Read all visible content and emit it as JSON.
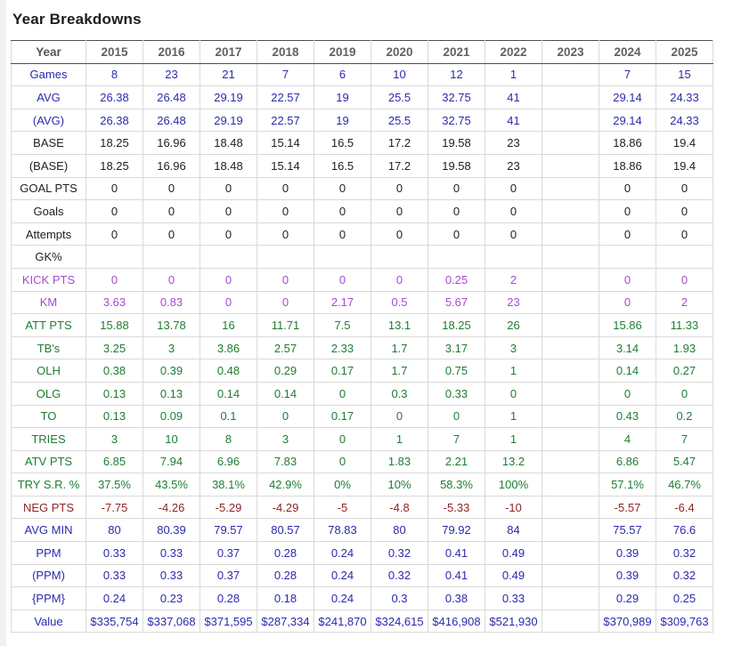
{
  "page": {
    "title": "Year Breakdowns"
  },
  "colors": {
    "blue": "#2a2aad",
    "black": "#202124",
    "purple": "#a44bd3",
    "green": "#1e7d32",
    "red": "#8e2424",
    "header_gray": "#616161"
  },
  "table": {
    "header": {
      "label": "Year",
      "years": [
        "2015",
        "2016",
        "2017",
        "2018",
        "2019",
        "2020",
        "2021",
        "2022",
        "2023",
        "2024",
        "2025"
      ]
    },
    "rows": [
      {
        "label": "Games",
        "color": "blue",
        "values": [
          "8",
          "23",
          "21",
          "7",
          "6",
          "10",
          "12",
          "1",
          "",
          "7",
          "15"
        ]
      },
      {
        "label": "AVG",
        "color": "blue",
        "values": [
          "26.38",
          "26.48",
          "29.19",
          "22.57",
          "19",
          "25.5",
          "32.75",
          "41",
          "",
          "29.14",
          "24.33"
        ]
      },
      {
        "label": "(AVG)",
        "color": "blue",
        "values": [
          "26.38",
          "26.48",
          "29.19",
          "22.57",
          "19",
          "25.5",
          "32.75",
          "41",
          "",
          "29.14",
          "24.33"
        ]
      },
      {
        "label": "BASE",
        "color": "black",
        "values": [
          "18.25",
          "16.96",
          "18.48",
          "15.14",
          "16.5",
          "17.2",
          "19.58",
          "23",
          "",
          "18.86",
          "19.4"
        ]
      },
      {
        "label": "(BASE)",
        "color": "black",
        "values": [
          "18.25",
          "16.96",
          "18.48",
          "15.14",
          "16.5",
          "17.2",
          "19.58",
          "23",
          "",
          "18.86",
          "19.4"
        ]
      },
      {
        "label": "GOAL PTS",
        "color": "black",
        "values": [
          "0",
          "0",
          "0",
          "0",
          "0",
          "0",
          "0",
          "0",
          "",
          "0",
          "0"
        ]
      },
      {
        "label": "Goals",
        "color": "black",
        "values": [
          "0",
          "0",
          "0",
          "0",
          "0",
          "0",
          "0",
          "0",
          "",
          "0",
          "0"
        ]
      },
      {
        "label": "Attempts",
        "color": "black",
        "values": [
          "0",
          "0",
          "0",
          "0",
          "0",
          "0",
          "0",
          "0",
          "",
          "0",
          "0"
        ]
      },
      {
        "label": "GK%",
        "color": "black",
        "values": [
          "",
          "",
          "",
          "",
          "",
          "",
          "",
          "",
          "",
          "",
          ""
        ]
      },
      {
        "label": "KICK PTS",
        "color": "purple",
        "values": [
          "0",
          "0",
          "0",
          "0",
          "0",
          "0",
          "0.25",
          "2",
          "",
          "0",
          "0"
        ]
      },
      {
        "label": "KM",
        "color": "purple",
        "values": [
          "3.63",
          "0.83",
          "0",
          "0",
          "2.17",
          "0.5",
          "5.67",
          "23",
          "",
          "0",
          "2"
        ]
      },
      {
        "label": "ATT PTS",
        "color": "green",
        "values": [
          "15.88",
          "13.78",
          "16",
          "11.71",
          "7.5",
          "13.1",
          "18.25",
          "26",
          "",
          "15.86",
          "11.33"
        ]
      },
      {
        "label": "TB's",
        "color": "green",
        "values": [
          "3.25",
          "3",
          "3.86",
          "2.57",
          "2.33",
          "1.7",
          "3.17",
          "3",
          "",
          "3.14",
          "1.93"
        ]
      },
      {
        "label": "OLH",
        "color": "green",
        "values": [
          "0.38",
          "0.39",
          "0.48",
          "0.29",
          "0.17",
          "1.7",
          "0.75",
          "1",
          "",
          "0.14",
          "0.27"
        ]
      },
      {
        "label": "OLG",
        "color": "green",
        "values": [
          "0.13",
          "0.13",
          "0.14",
          "0.14",
          "0",
          "0.3",
          "0.33",
          "0",
          "",
          "0",
          "0"
        ]
      },
      {
        "label": "TO",
        "color": "green",
        "values": [
          "0.13",
          "0.09",
          "0.1",
          "0",
          "0.17",
          "0",
          "0",
          "1",
          "",
          "0.43",
          "0.2"
        ]
      },
      {
        "label": "TRIES",
        "color": "green",
        "values": [
          "3",
          "10",
          "8",
          "3",
          "0",
          "1",
          "7",
          "1",
          "",
          "4",
          "7"
        ]
      },
      {
        "label": "ATV PTS",
        "color": "green",
        "values": [
          "6.85",
          "7.94",
          "6.96",
          "7.83",
          "0",
          "1.83",
          "2.21",
          "13.2",
          "",
          "6.86",
          "5.47"
        ]
      },
      {
        "label": "TRY S.R. %",
        "color": "green",
        "values": [
          "37.5%",
          "43.5%",
          "38.1%",
          "42.9%",
          "0%",
          "10%",
          "58.3%",
          "100%",
          "",
          "57.1%",
          "46.7%"
        ]
      },
      {
        "label": "NEG PTS",
        "color": "red",
        "values": [
          "-7.75",
          "-4.26",
          "-5.29",
          "-4.29",
          "-5",
          "-4.8",
          "-5.33",
          "-10",
          "",
          "-5.57",
          "-6.4"
        ]
      },
      {
        "label": "AVG MIN",
        "color": "blue",
        "values": [
          "80",
          "80.39",
          "79.57",
          "80.57",
          "78.83",
          "80",
          "79.92",
          "84",
          "",
          "75.57",
          "76.6"
        ]
      },
      {
        "label": "PPM",
        "color": "blue",
        "values": [
          "0.33",
          "0.33",
          "0.37",
          "0.28",
          "0.24",
          "0.32",
          "0.41",
          "0.49",
          "",
          "0.39",
          "0.32"
        ]
      },
      {
        "label": "(PPM)",
        "color": "blue",
        "values": [
          "0.33",
          "0.33",
          "0.37",
          "0.28",
          "0.24",
          "0.32",
          "0.41",
          "0.49",
          "",
          "0.39",
          "0.32"
        ]
      },
      {
        "label": "{PPM}",
        "color": "blue",
        "values": [
          "0.24",
          "0.23",
          "0.28",
          "0.18",
          "0.24",
          "0.3",
          "0.38",
          "0.33",
          "",
          "0.29",
          "0.25"
        ]
      },
      {
        "label": "Value",
        "color": "blue",
        "values": [
          "$335,754",
          "$337,068",
          "$371,595",
          "$287,334",
          "$241,870",
          "$324,615",
          "$416,908",
          "$521,930",
          "",
          "$370,989",
          "$309,763"
        ]
      }
    ]
  }
}
